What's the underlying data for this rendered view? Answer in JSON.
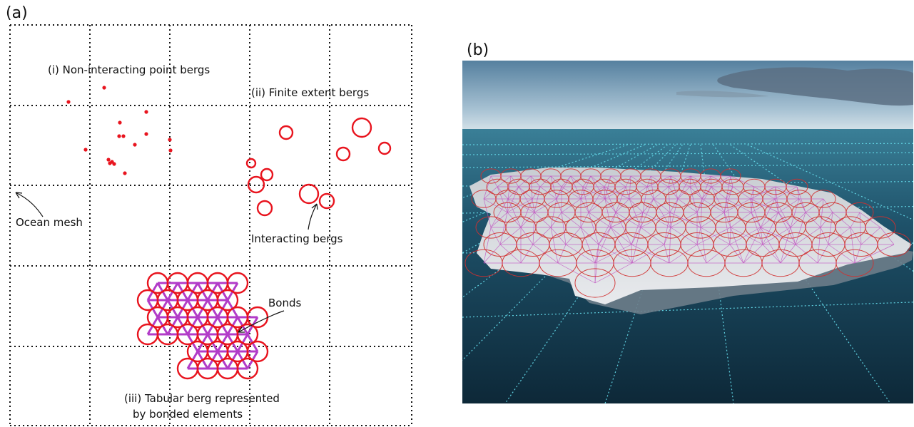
{
  "panel_a": {
    "label": "(a)",
    "annotations": {
      "point_bergs": "(i) Non-interacting point bergs",
      "finite_bergs": "(ii) Finite extent bergs",
      "ocean_mesh": "Ocean mesh",
      "interacting": "Interacting bergs",
      "bonds": "Bonds",
      "tabular_line1": "(iii) Tabular berg represented",
      "tabular_line2": "by bonded elements"
    },
    "colors": {
      "berg": "#e8141e",
      "bond": "#b23cc8",
      "grid": "#111111"
    }
  },
  "panel_b": {
    "label": "(b)",
    "colors": {
      "sky_top": "#5d86a8",
      "sea": "#163a52",
      "mesh": "#5fd0e0",
      "element": "#d03030"
    }
  }
}
